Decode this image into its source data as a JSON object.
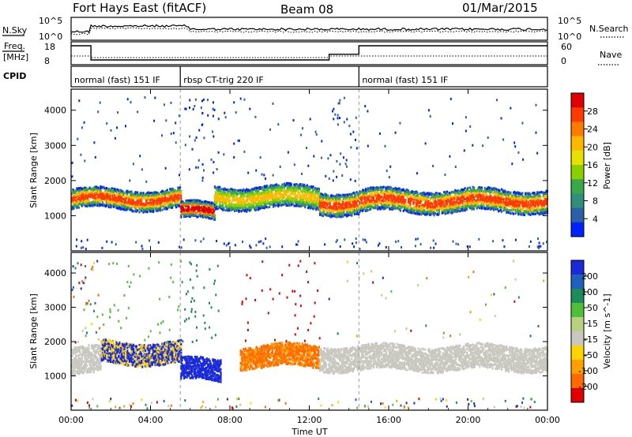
{
  "header": {
    "title": "Fort Hays East (fitACF)",
    "beam": "Beam 08",
    "date": "01/Mar/2015"
  },
  "status_panels": {
    "nsky_label": "N.Sky",
    "nsearch_label": "N.Search",
    "nsky_ticks": [
      "10^5",
      "10^0"
    ],
    "nsearch_ticks": [
      "10^5",
      "10^0"
    ],
    "freq_label_1": "Freq.",
    "freq_label_2": "[MHz]",
    "freq_ticks": [
      "18",
      "8"
    ],
    "nave_label": "Nave",
    "nave_ticks": [
      "60",
      "0"
    ],
    "cpid_label": "CPID",
    "cpid_segments": [
      {
        "label": "normal (fast) 151 IF",
        "start_hour": 0.0,
        "end_hour": 5.5
      },
      {
        "label": "rbsp CT-trig 220 IF",
        "start_hour": 5.5,
        "end_hour": 14.5
      },
      {
        "label": "normal (fast) 151 IF",
        "start_hour": 14.5,
        "end_hour": 24.0
      }
    ],
    "frequency_steps_mhz": [
      {
        "start_hour": 0.0,
        "end_hour": 1.0,
        "value": 18
      },
      {
        "start_hour": 1.0,
        "end_hour": 13.0,
        "value": 8
      },
      {
        "start_hour": 13.0,
        "end_hour": 14.5,
        "value": 12
      },
      {
        "start_hour": 14.5,
        "end_hour": 24.0,
        "value": 18
      }
    ]
  },
  "chart_data": [
    {
      "type": "heatmap",
      "panel": "power",
      "ylabel": "Slant Range [km]",
      "ylim": [
        0,
        4600
      ],
      "y_ticks": [
        1000,
        2000,
        3000,
        4000
      ],
      "xlim_hours": [
        0,
        24
      ],
      "colorbar_label": "Power [dB]",
      "colorbar_ticks": [
        "28",
        "24",
        "20",
        "16",
        "12",
        "8",
        "4"
      ],
      "colorbar_colors": [
        "#e00000",
        "#ff3a00",
        "#ff7a00",
        "#ffb800",
        "#e8e000",
        "#8ad000",
        "#3aa84a",
        "#2f8f7a",
        "#2b5fa8",
        "#0022ff"
      ],
      "echo_bands": [
        {
          "start_hour": 0.0,
          "end_hour": 5.5,
          "center_km": 1500,
          "width_km": 350,
          "level": "high"
        },
        {
          "start_hour": 5.5,
          "end_hour": 7.2,
          "center_km": 1150,
          "width_km": 300,
          "level": "very high"
        },
        {
          "start_hour": 7.2,
          "end_hour": 12.5,
          "center_km": 1550,
          "width_km": 400,
          "level": "medium"
        },
        {
          "start_hour": 12.5,
          "end_hour": 14.5,
          "center_km": 1400,
          "width_km": 400,
          "level": "high"
        },
        {
          "start_hour": 14.5,
          "end_hour": 24.0,
          "center_km": 1450,
          "width_km": 400,
          "level": "high"
        }
      ]
    },
    {
      "type": "heatmap",
      "panel": "velocity",
      "xlabel": "Time UT",
      "ylabel": "Slant Range [km]",
      "ylim": [
        0,
        4600
      ],
      "y_ticks": [
        1000,
        2000,
        3000,
        4000
      ],
      "x_ticks": [
        "00:00",
        "04:00",
        "08:00",
        "12:00",
        "16:00",
        "20:00",
        "00:00"
      ],
      "xlim_hours": [
        0,
        24
      ],
      "colorbar_label": "Velocity [m s^-1]",
      "colorbar_ticks": [
        "200",
        "100",
        "50",
        "15",
        "-15",
        "-50",
        "-100",
        "-200"
      ],
      "colorbar_colors": [
        "#1a2ad8",
        "#1f5fc0",
        "#1f8a5a",
        "#4fbf3a",
        "#b8d080",
        "#c8c8c0",
        "#ffd400",
        "#ffa000",
        "#ff6a00",
        "#e00000"
      ],
      "echo_bands": [
        {
          "start_hour": 0.0,
          "end_hour": 1.5,
          "center_km": 1450,
          "width_km": 500,
          "velocity_class": "ground"
        },
        {
          "start_hour": 1.5,
          "end_hour": 5.5,
          "center_km": 1700,
          "width_km": 400,
          "velocity_class": "positive"
        },
        {
          "start_hour": 5.5,
          "end_hour": 7.5,
          "center_km": 1200,
          "width_km": 400,
          "velocity_class": "strong positive"
        },
        {
          "start_hour": 8.5,
          "end_hour": 12.5,
          "center_km": 1600,
          "width_km": 400,
          "velocity_class": "negative"
        },
        {
          "start_hour": 12.5,
          "end_hour": 24.0,
          "center_km": 1550,
          "width_km": 450,
          "velocity_class": "ground"
        }
      ]
    }
  ]
}
